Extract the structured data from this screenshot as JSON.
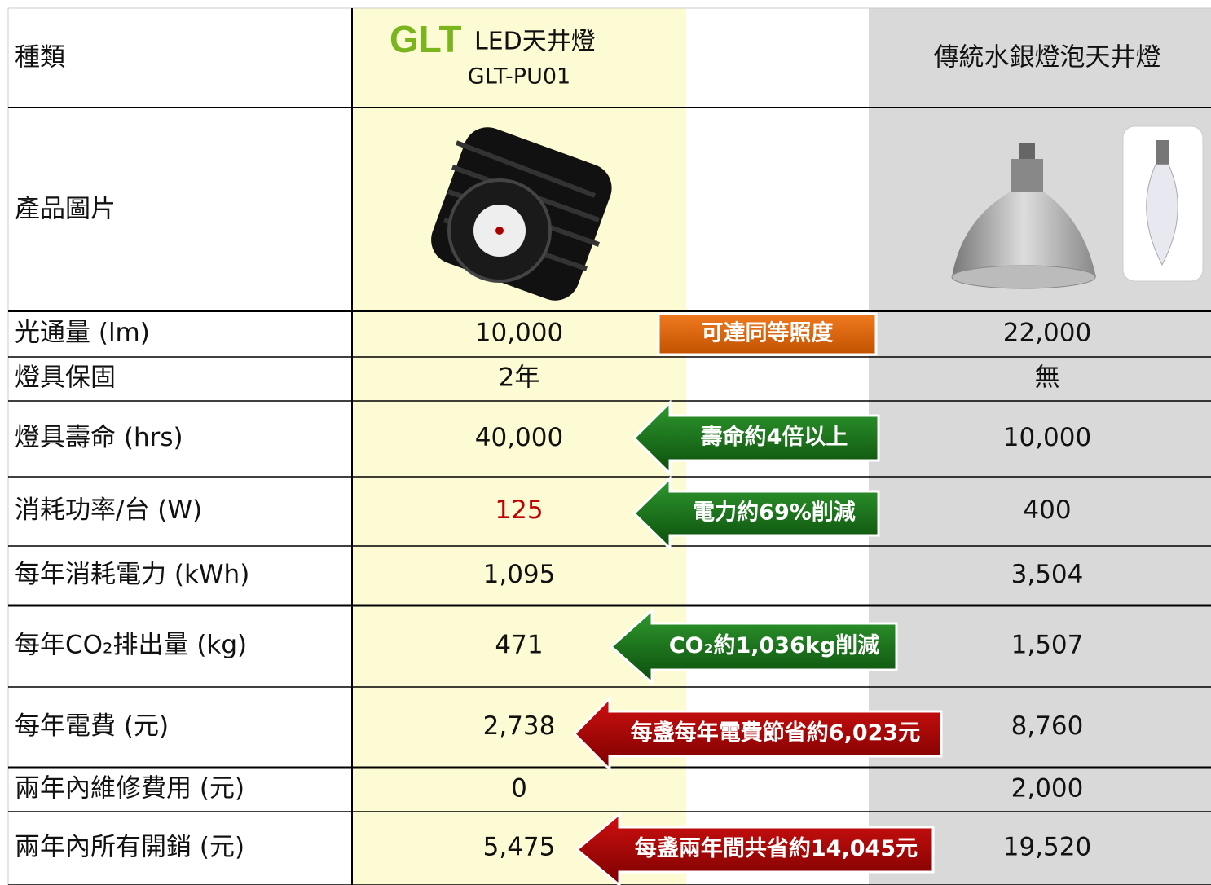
{
  "header": {
    "label": "種類",
    "led_brand": "GLT",
    "led_name": "LED天井燈",
    "led_model": "GLT-PU01",
    "traditional": "傳統水銀燈泡天井燈"
  },
  "image_row": {
    "label": "產品圖片"
  },
  "rows": [
    {
      "label": "光通量 (lm)",
      "led": "10,000",
      "note": "可達同等照度",
      "traditional": "22,000"
    },
    {
      "label": "燈具保固",
      "led": "2年",
      "traditional": "無"
    },
    {
      "label": "燈具壽命 (hrs)",
      "led": "40,000",
      "note": "壽命約4倍以上",
      "traditional": "10,000"
    },
    {
      "label": "消耗功率/台 (W)",
      "led": "125",
      "note": "電力約69%削減",
      "traditional": "400"
    },
    {
      "label": "每年消耗電力 (kWh)",
      "led": "1,095",
      "traditional": "3,504"
    },
    {
      "label": "每年CO₂排出量 (kg)",
      "led": "471",
      "note": "CO₂約1,036kg削減",
      "traditional": "1,507"
    },
    {
      "label": "每年電費 (元)",
      "led": "2,738",
      "note": "每盞每年電費節省約6,023元",
      "traditional": "8,760"
    },
    {
      "label": "兩年內維修費用 (元)",
      "led": "0",
      "traditional": "2,000"
    },
    {
      "label": "兩年內所有開銷 (元)",
      "led": "5,475",
      "note": "每盞兩年間共省約14,045元",
      "traditional": "19,520"
    }
  ]
}
